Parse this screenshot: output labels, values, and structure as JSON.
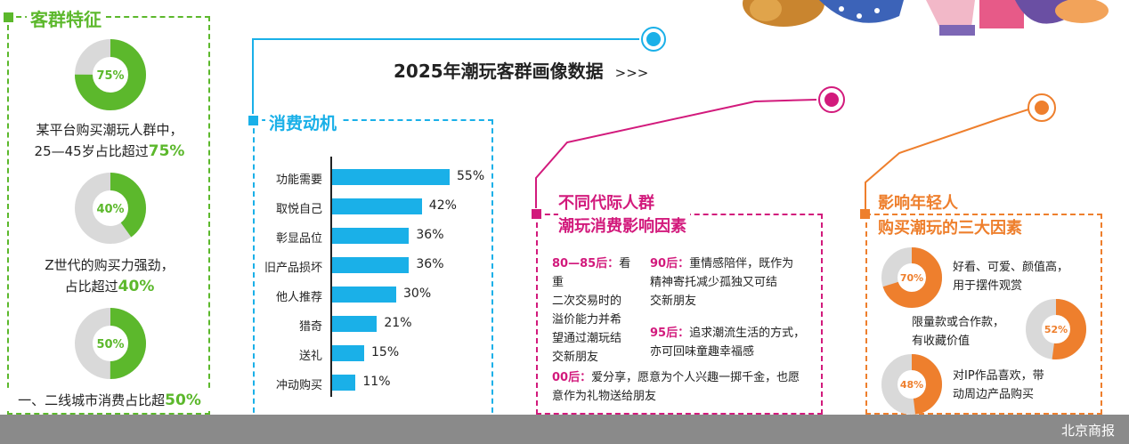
{
  "header": {
    "title": "2025年潮玩客群画像数据",
    "arrows": ">>>"
  },
  "section1": {
    "title": "客群特征",
    "items": [
      {
        "pct_label": "75%",
        "value": 75,
        "line1": "某平台购买潮玩人群中，",
        "line2_prefix": "25—45岁占比超过",
        "line2_hl": "75%"
      },
      {
        "pct_label": "40%",
        "value": 40,
        "line1": "Z世代的购买力强劲，",
        "line2_prefix": "占比超过",
        "line2_hl": "40%"
      },
      {
        "pct_label": "50%",
        "value": 50,
        "line1": "",
        "line2_prefix": "一、二线城市消费占比超",
        "line2_hl": "50%"
      }
    ]
  },
  "section2": {
    "title": "消费动机"
  },
  "chart_data": {
    "type": "bar",
    "orientation": "horizontal",
    "categories": [
      "功能需要",
      "取悦自己",
      "彰显品位",
      "旧产品损坏",
      "他人推荐",
      "猎奇",
      "送礼",
      "冲动购买"
    ],
    "values": [
      55,
      42,
      36,
      36,
      30,
      21,
      15,
      11
    ],
    "value_labels": [
      "55%",
      "42%",
      "36%",
      "36%",
      "30%",
      "21%",
      "15%",
      "11%"
    ],
    "xlim": [
      0,
      55
    ],
    "grid": false,
    "color": "#1ab0e8"
  },
  "section3": {
    "title_line1": "不同代际人群",
    "title_line2": "潮玩消费影响因素",
    "g8085_head": "80—85后：",
    "g8085_lines": [
      "看重",
      "二次交易时的",
      "溢价能力并希",
      "望通过潮玩结",
      "交新朋友"
    ],
    "g90_head": "90后：",
    "g90_lines": [
      "重情感陪伴，既作为",
      "精神寄托减少孤独又可结",
      "交新朋友"
    ],
    "g95_head": "95后：",
    "g95_lines": [
      "追求潮流生活的方式，",
      "亦可回味童趣幸福感"
    ],
    "g00_head": "00后：",
    "g00_lines": [
      "爱分享，愿意为个人兴趣一掷千金，也愿",
      "意作为礼物送给朋友"
    ]
  },
  "section4": {
    "title_line1": "影响年轻人",
    "title_line2": "购买潮玩的三大因素",
    "items": [
      {
        "pct_label": "70%",
        "value": 70,
        "lines": [
          "好看、可爱、颜值高，",
          "用于摆件观赏"
        ]
      },
      {
        "pct_label": "52%",
        "value": 52,
        "lines": [
          "限量款或合作款，",
          "有收藏价值"
        ]
      },
      {
        "pct_label": "48%",
        "value": 48,
        "lines": [
          "对IP作品喜欢，带",
          "动周边产品购买"
        ]
      }
    ]
  },
  "footer": {
    "brand": "北京商报"
  },
  "colors": {
    "green": "#5cb82c",
    "blue": "#1ab0e8",
    "magenta": "#d21a7c",
    "orange": "#ee7f2d",
    "gray": "#d9d9d9"
  }
}
